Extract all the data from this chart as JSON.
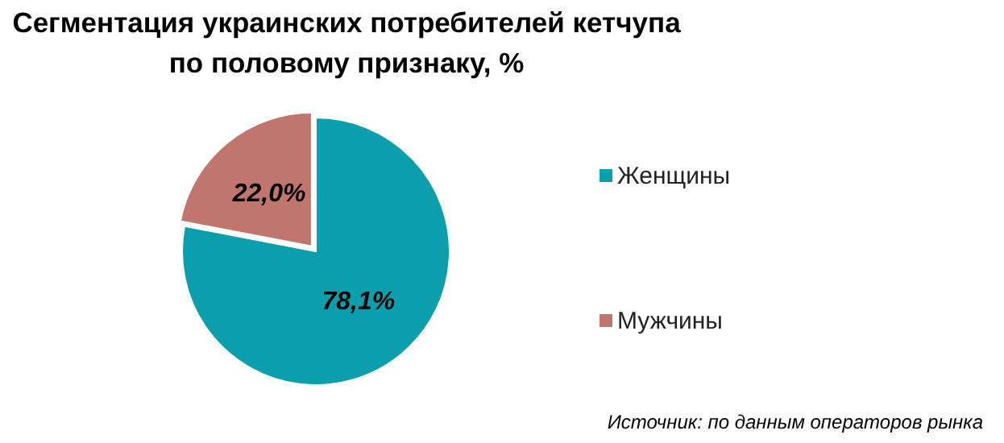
{
  "chart_data": {
    "type": "pie",
    "title": "Сегментация украинских потребителей кетчупа\nпо половому признаку, %",
    "categories": [
      "Женщины",
      "Мужчины"
    ],
    "values": [
      78.1,
      22.0
    ],
    "colors": [
      "#0b9fae",
      "#c0766c"
    ],
    "value_labels": [
      "78,1%",
      "22,0%"
    ],
    "legend": "right",
    "annotations": [
      "Источник: по данным операторов рынка"
    ]
  }
}
